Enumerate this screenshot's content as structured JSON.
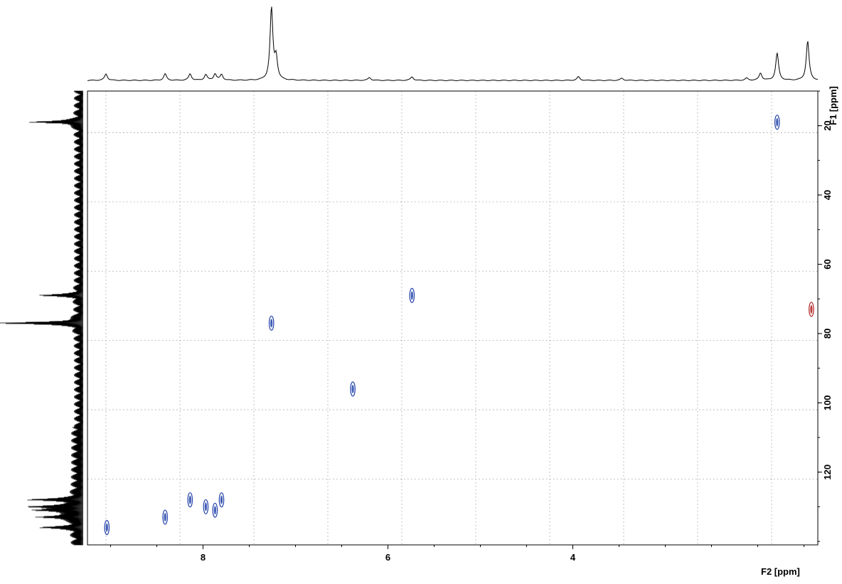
{
  "chart_data": {
    "type": "scatter",
    "subtype": "2D NMR HSQC contour plot",
    "x_axis": {
      "label": "F2 [ppm]",
      "reversed": true,
      "range": [
        9.25,
        1.35
      ],
      "ticks": [
        8,
        6,
        4
      ]
    },
    "y_axis": {
      "label": "F1 [ppm]",
      "position": "right",
      "reversed": true,
      "range": [
        10,
        141
      ],
      "ticks": [
        20,
        40,
        60,
        80,
        100,
        120
      ]
    },
    "grid": true,
    "grid_x": [
      9.05,
      8.25,
      7.45,
      6.65,
      5.85,
      5.05,
      4.25,
      3.45,
      2.65,
      1.85
    ],
    "grid_y": [
      22,
      42,
      62,
      82,
      102,
      122
    ],
    "series": [
      {
        "color": "#1f3fa8",
        "points": [
          {
            "x": 1.79,
            "y": 19
          },
          {
            "x": 5.74,
            "y": 69
          },
          {
            "x": 7.26,
            "y": 77
          },
          {
            "x": 6.38,
            "y": 96
          },
          {
            "x": 8.14,
            "y": 128
          },
          {
            "x": 7.8,
            "y": 128
          },
          {
            "x": 7.97,
            "y": 130
          },
          {
            "x": 7.87,
            "y": 131
          },
          {
            "x": 8.41,
            "y": 133
          },
          {
            "x": 9.04,
            "y": 136
          }
        ]
      },
      {
        "color": "#b02020",
        "points": [
          {
            "x": 1.42,
            "y": 73
          }
        ]
      }
    ],
    "f2_projection_peaks": [
      {
        "x": 9.05,
        "h": 0.09
      },
      {
        "x": 8.41,
        "h": 0.09
      },
      {
        "x": 8.14,
        "h": 0.09
      },
      {
        "x": 7.97,
        "h": 0.08
      },
      {
        "x": 7.87,
        "h": 0.09
      },
      {
        "x": 7.8,
        "h": 0.08
      },
      {
        "x": 7.26,
        "h": 1.0
      },
      {
        "x": 7.21,
        "h": 0.3
      },
      {
        "x": 6.2,
        "h": 0.04
      },
      {
        "x": 5.74,
        "h": 0.05
      },
      {
        "x": 3.94,
        "h": 0.05
      },
      {
        "x": 3.47,
        "h": 0.03
      },
      {
        "x": 2.12,
        "h": 0.03
      },
      {
        "x": 1.97,
        "h": 0.1
      },
      {
        "x": 1.79,
        "h": 0.38
      },
      {
        "x": 1.46,
        "h": 0.55
      }
    ],
    "f1_projection_peaks": [
      {
        "y": 19,
        "w": 0.6
      },
      {
        "y": 69,
        "w": 0.45
      },
      {
        "y": 77,
        "w": 1.0
      },
      {
        "y": 128,
        "w": 0.55
      },
      {
        "y": 130,
        "w": 0.5
      },
      {
        "y": 131,
        "w": 0.5
      },
      {
        "y": 133,
        "w": 0.5
      },
      {
        "y": 136,
        "w": 0.4
      }
    ]
  }
}
